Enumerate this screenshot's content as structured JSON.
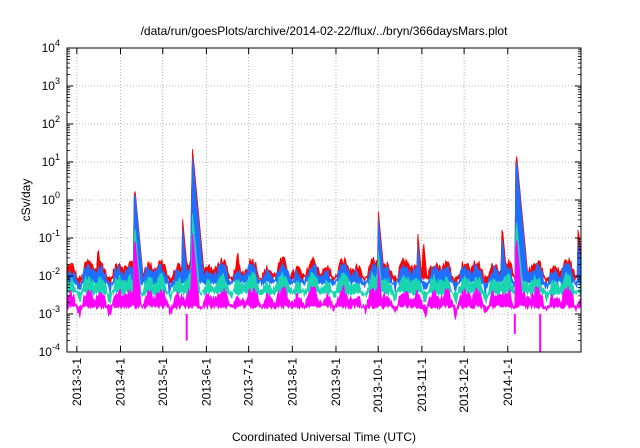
{
  "chart_data": {
    "type": "area",
    "title": "/data/run/goesPlots/archive/2014-02-22/flux/../bryn/366daysMars.plot",
    "xlabel": "Coordinated Universal Time (UTC)",
    "ylabel": "cSv/day",
    "y_scale": "log",
    "ylim": [
      0.0001,
      10000
    ],
    "xlim": [
      "2013-02-22",
      "2014-02-22"
    ],
    "grid": true,
    "legend": "none",
    "y_ticks": [
      {
        "base": "10",
        "exp": "-4"
      },
      {
        "base": "10",
        "exp": "-3"
      },
      {
        "base": "10",
        "exp": "-2"
      },
      {
        "base": "10",
        "exp": "-1"
      },
      {
        "base": "10",
        "exp": "0"
      },
      {
        "base": "10",
        "exp": "1"
      },
      {
        "base": "10",
        "exp": "2"
      },
      {
        "base": "10",
        "exp": "3"
      },
      {
        "base": "10",
        "exp": "4"
      }
    ],
    "x_ticks": [
      {
        "date": "2013-03-01",
        "label": "2013-3-1"
      },
      {
        "date": "2013-04-01",
        "label": "2013-4-1"
      },
      {
        "date": "2013-05-01",
        "label": "2013-5-1"
      },
      {
        "date": "2013-06-01",
        "label": "2013-6-1"
      },
      {
        "date": "2013-07-01",
        "label": "2013-7-1"
      },
      {
        "date": "2013-08-01",
        "label": "2013-8-1"
      },
      {
        "date": "2013-09-01",
        "label": "2013-9-1"
      },
      {
        "date": "2013-10-01",
        "label": "2013-10-1"
      },
      {
        "date": "2013-11-01",
        "label": "2013-11-1"
      },
      {
        "date": "2013-12-01",
        "label": "2013-12-1"
      },
      {
        "date": "2014-01-01",
        "label": "2014-1-1"
      }
    ],
    "series": [
      {
        "color": "#ff0000",
        "baseline": 0.02,
        "events": [
          {
            "date": "2013-03-16",
            "value": 0.07
          },
          {
            "date": "2013-04-11",
            "value": 2.5
          },
          {
            "date": "2013-05-15",
            "value": 0.35
          },
          {
            "date": "2013-05-22",
            "value": 25
          },
          {
            "date": "2013-06-23",
            "value": 0.06
          },
          {
            "date": "2013-10-01",
            "value": 0.55
          },
          {
            "date": "2013-10-29",
            "value": 0.15
          },
          {
            "date": "2013-11-02",
            "value": 0.1
          },
          {
            "date": "2013-12-28",
            "value": 0.22
          },
          {
            "date": "2014-01-07",
            "value": 20
          },
          {
            "date": "2014-02-20",
            "value": 0.2
          }
        ]
      },
      {
        "color": "#1e6fff",
        "baseline": 0.015,
        "events": [
          {
            "date": "2013-04-11",
            "value": 2
          },
          {
            "date": "2013-05-15",
            "value": 0.2
          },
          {
            "date": "2013-05-22",
            "value": 15
          },
          {
            "date": "2013-10-01",
            "value": 0.35
          },
          {
            "date": "2013-10-29",
            "value": 0.08
          },
          {
            "date": "2013-12-28",
            "value": 0.12
          },
          {
            "date": "2014-01-07",
            "value": 14
          },
          {
            "date": "2014-02-20",
            "value": 0.1
          }
        ]
      },
      {
        "color": "#19d6b0",
        "baseline": 0.008,
        "events": [
          {
            "date": "2013-04-11",
            "value": 0.25
          },
          {
            "date": "2013-05-22",
            "value": 0.5
          },
          {
            "date": "2013-10-01",
            "value": 0.05
          },
          {
            "date": "2014-01-07",
            "value": 0.35
          }
        ]
      },
      {
        "color": "#ff00ff",
        "baseline": 0.0035,
        "events": [
          {
            "date": "2013-04-11",
            "value": 0.12
          },
          {
            "date": "2013-05-22",
            "value": 0.15
          },
          {
            "date": "2013-10-01",
            "value": 0.02
          },
          {
            "date": "2014-01-07",
            "value": 0.12
          }
        ]
      }
    ]
  }
}
